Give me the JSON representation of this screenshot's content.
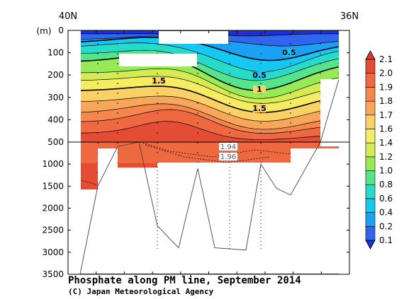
{
  "chart_data": {
    "type": "contour",
    "title": "Phosphate along PM line, September 2014",
    "credit": "(C) Japan Meteorological Agency",
    "x_axis": {
      "left_label": "40N",
      "right_label": "36N",
      "xlim": [
        40,
        36
      ]
    },
    "y_axis": {
      "unit_label": "(m)",
      "upper_ticks": [
        0,
        100,
        200,
        300,
        400,
        500
      ],
      "lower_ticks": [
        1000,
        1500,
        2000,
        2500,
        3000,
        3500
      ],
      "upper_range": [
        0,
        500
      ],
      "lower_range": [
        500,
        3500
      ]
    },
    "colorbar": {
      "levels": [
        "0.1",
        "0.2",
        "0.4",
        "0.6",
        "0.8",
        "1.0",
        "1.2",
        "1.4",
        "1.6",
        "1.7",
        "1.8",
        "1.9",
        "2.0",
        "2.1"
      ],
      "colors": [
        "#1f2fd6",
        "#2f66ee",
        "#1aa0f5",
        "#14c8f2",
        "#26dcc8",
        "#55e48a",
        "#96ea55",
        "#d4ec52",
        "#f6ec62",
        "#fbd064",
        "#f8a65a",
        "#f5864c",
        "#ee6840",
        "#e44c34",
        "#d83a2c"
      ]
    },
    "contour_labels": [
      {
        "text": "0.5"
      },
      {
        "text": "0.5"
      },
      {
        "text": "1.5"
      },
      {
        "text": "1"
      },
      {
        "text": "1.5"
      },
      {
        "text": "1.94"
      },
      {
        "text": "1.96"
      }
    ],
    "bottom_profile_depths_m": [
      3500,
      1500,
      600,
      500,
      2400,
      2900,
      1100,
      2900,
      2950,
      1000,
      1550,
      1700,
      500,
      220
    ],
    "grid": true
  }
}
